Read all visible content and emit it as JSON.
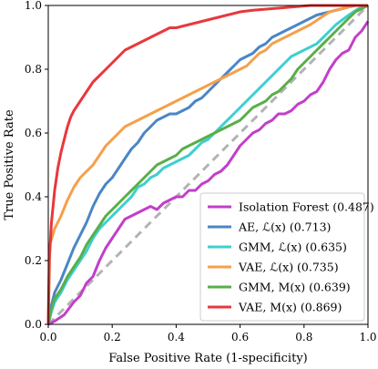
{
  "chart_data": {
    "type": "line",
    "title": "",
    "xlabel": "False Positive Rate (1-specificity)",
    "ylabel": "True Positive Rate",
    "xlim": [
      0,
      1
    ],
    "ylim": [
      0,
      1
    ],
    "xticks": [
      "0.0",
      "0.2",
      "0.4",
      "0.6",
      "0.8",
      "1.0"
    ],
    "yticks": [
      "0.0",
      "0.2",
      "0.4",
      "0.6",
      "0.8",
      "1.0"
    ],
    "grid": false,
    "legend_position": "lower-right",
    "diagonal": {
      "color": "#b3b3b3",
      "style": "dashed"
    },
    "series": [
      {
        "name": "Isolation Forest (0.487)",
        "color": "#c23fc9",
        "points": [
          [
            0,
            0
          ],
          [
            0.02,
            0.01
          ],
          [
            0.05,
            0.03
          ],
          [
            0.08,
            0.07
          ],
          [
            0.1,
            0.09
          ],
          [
            0.12,
            0.13
          ],
          [
            0.14,
            0.15
          ],
          [
            0.16,
            0.2
          ],
          [
            0.18,
            0.24
          ],
          [
            0.2,
            0.27
          ],
          [
            0.22,
            0.3
          ],
          [
            0.24,
            0.33
          ],
          [
            0.26,
            0.34
          ],
          [
            0.28,
            0.35
          ],
          [
            0.3,
            0.36
          ],
          [
            0.32,
            0.37
          ],
          [
            0.34,
            0.36
          ],
          [
            0.36,
            0.38
          ],
          [
            0.38,
            0.39
          ],
          [
            0.4,
            0.4
          ],
          [
            0.42,
            0.4
          ],
          [
            0.44,
            0.42
          ],
          [
            0.46,
            0.42
          ],
          [
            0.48,
            0.44
          ],
          [
            0.5,
            0.45
          ],
          [
            0.52,
            0.47
          ],
          [
            0.54,
            0.48
          ],
          [
            0.56,
            0.5
          ],
          [
            0.58,
            0.53
          ],
          [
            0.6,
            0.56
          ],
          [
            0.62,
            0.58
          ],
          [
            0.64,
            0.6
          ],
          [
            0.66,
            0.61
          ],
          [
            0.68,
            0.63
          ],
          [
            0.7,
            0.64
          ],
          [
            0.72,
            0.66
          ],
          [
            0.74,
            0.66
          ],
          [
            0.76,
            0.67
          ],
          [
            0.78,
            0.69
          ],
          [
            0.8,
            0.7
          ],
          [
            0.82,
            0.72
          ],
          [
            0.84,
            0.73
          ],
          [
            0.86,
            0.76
          ],
          [
            0.88,
            0.8
          ],
          [
            0.9,
            0.83
          ],
          [
            0.92,
            0.85
          ],
          [
            0.94,
            0.86
          ],
          [
            0.96,
            0.9
          ],
          [
            0.98,
            0.92
          ],
          [
            1.0,
            0.95
          ]
        ]
      },
      {
        "name": "AE, ℒ(x) (0.713)",
        "color": "#4a86c6",
        "points": [
          [
            0,
            0
          ],
          [
            0.01,
            0.06
          ],
          [
            0.02,
            0.1
          ],
          [
            0.04,
            0.14
          ],
          [
            0.06,
            0.19
          ],
          [
            0.08,
            0.24
          ],
          [
            0.1,
            0.28
          ],
          [
            0.12,
            0.32
          ],
          [
            0.14,
            0.37
          ],
          [
            0.16,
            0.41
          ],
          [
            0.18,
            0.44
          ],
          [
            0.2,
            0.46
          ],
          [
            0.22,
            0.49
          ],
          [
            0.24,
            0.52
          ],
          [
            0.26,
            0.55
          ],
          [
            0.28,
            0.57
          ],
          [
            0.3,
            0.6
          ],
          [
            0.32,
            0.62
          ],
          [
            0.34,
            0.64
          ],
          [
            0.36,
            0.65
          ],
          [
            0.38,
            0.66
          ],
          [
            0.4,
            0.66
          ],
          [
            0.42,
            0.67
          ],
          [
            0.44,
            0.68
          ],
          [
            0.46,
            0.7
          ],
          [
            0.48,
            0.71
          ],
          [
            0.5,
            0.73
          ],
          [
            0.52,
            0.75
          ],
          [
            0.54,
            0.77
          ],
          [
            0.56,
            0.79
          ],
          [
            0.58,
            0.81
          ],
          [
            0.6,
            0.83
          ],
          [
            0.62,
            0.84
          ],
          [
            0.64,
            0.85
          ],
          [
            0.66,
            0.87
          ],
          [
            0.68,
            0.88
          ],
          [
            0.7,
            0.9
          ],
          [
            0.72,
            0.91
          ],
          [
            0.74,
            0.92
          ],
          [
            0.76,
            0.93
          ],
          [
            0.78,
            0.94
          ],
          [
            0.8,
            0.95
          ],
          [
            0.84,
            0.97
          ],
          [
            0.88,
            0.98
          ],
          [
            0.92,
            0.99
          ],
          [
            0.96,
            1.0
          ],
          [
            1.0,
            1.0
          ]
        ]
      },
      {
        "name": "GMM, ℒ(x) (0.635)",
        "color": "#3fcfcf",
        "points": [
          [
            0,
            0
          ],
          [
            0.01,
            0.04
          ],
          [
            0.02,
            0.07
          ],
          [
            0.04,
            0.1
          ],
          [
            0.06,
            0.14
          ],
          [
            0.08,
            0.17
          ],
          [
            0.1,
            0.2
          ],
          [
            0.12,
            0.23
          ],
          [
            0.14,
            0.27
          ],
          [
            0.16,
            0.3
          ],
          [
            0.18,
            0.32
          ],
          [
            0.2,
            0.34
          ],
          [
            0.22,
            0.36
          ],
          [
            0.24,
            0.38
          ],
          [
            0.26,
            0.4
          ],
          [
            0.28,
            0.43
          ],
          [
            0.3,
            0.44
          ],
          [
            0.32,
            0.46
          ],
          [
            0.34,
            0.47
          ],
          [
            0.36,
            0.49
          ],
          [
            0.38,
            0.5
          ],
          [
            0.4,
            0.51
          ],
          [
            0.42,
            0.52
          ],
          [
            0.44,
            0.53
          ],
          [
            0.46,
            0.55
          ],
          [
            0.48,
            0.57
          ],
          [
            0.5,
            0.58
          ],
          [
            0.52,
            0.6
          ],
          [
            0.54,
            0.62
          ],
          [
            0.56,
            0.64
          ],
          [
            0.58,
            0.66
          ],
          [
            0.6,
            0.68
          ],
          [
            0.62,
            0.7
          ],
          [
            0.64,
            0.72
          ],
          [
            0.66,
            0.74
          ],
          [
            0.68,
            0.76
          ],
          [
            0.7,
            0.78
          ],
          [
            0.72,
            0.8
          ],
          [
            0.74,
            0.82
          ],
          [
            0.76,
            0.84
          ],
          [
            0.78,
            0.85
          ],
          [
            0.8,
            0.86
          ],
          [
            0.82,
            0.87
          ],
          [
            0.84,
            0.88
          ],
          [
            0.86,
            0.9
          ],
          [
            0.88,
            0.92
          ],
          [
            0.9,
            0.94
          ],
          [
            0.94,
            0.97
          ],
          [
            0.97,
            0.99
          ],
          [
            1.0,
            1.0
          ]
        ]
      },
      {
        "name": "VAE, ℒ(x) (0.735)",
        "color": "#f5a04a",
        "points": [
          [
            0,
            0
          ],
          [
            0.005,
            0.25
          ],
          [
            0.02,
            0.3
          ],
          [
            0.04,
            0.34
          ],
          [
            0.06,
            0.39
          ],
          [
            0.08,
            0.43
          ],
          [
            0.1,
            0.46
          ],
          [
            0.12,
            0.48
          ],
          [
            0.14,
            0.5
          ],
          [
            0.16,
            0.53
          ],
          [
            0.18,
            0.56
          ],
          [
            0.2,
            0.58
          ],
          [
            0.22,
            0.6
          ],
          [
            0.24,
            0.62
          ],
          [
            0.26,
            0.63
          ],
          [
            0.28,
            0.64
          ],
          [
            0.3,
            0.65
          ],
          [
            0.32,
            0.66
          ],
          [
            0.34,
            0.67
          ],
          [
            0.36,
            0.68
          ],
          [
            0.38,
            0.69
          ],
          [
            0.4,
            0.7
          ],
          [
            0.42,
            0.71
          ],
          [
            0.44,
            0.72
          ],
          [
            0.46,
            0.73
          ],
          [
            0.48,
            0.74
          ],
          [
            0.5,
            0.75
          ],
          [
            0.52,
            0.76
          ],
          [
            0.54,
            0.77
          ],
          [
            0.56,
            0.78
          ],
          [
            0.58,
            0.79
          ],
          [
            0.6,
            0.8
          ],
          [
            0.62,
            0.81
          ],
          [
            0.64,
            0.83
          ],
          [
            0.66,
            0.85
          ],
          [
            0.68,
            0.86
          ],
          [
            0.7,
            0.88
          ],
          [
            0.72,
            0.89
          ],
          [
            0.74,
            0.9
          ],
          [
            0.76,
            0.91
          ],
          [
            0.78,
            0.92
          ],
          [
            0.8,
            0.93
          ],
          [
            0.82,
            0.94
          ],
          [
            0.85,
            0.96
          ],
          [
            0.88,
            0.98
          ],
          [
            0.92,
            0.99
          ],
          [
            0.96,
            1.0
          ],
          [
            1.0,
            1.0
          ]
        ]
      },
      {
        "name": "GMM, M(x) (0.639)",
        "color": "#5aae4a",
        "points": [
          [
            0,
            0
          ],
          [
            0.01,
            0.05
          ],
          [
            0.02,
            0.08
          ],
          [
            0.04,
            0.11
          ],
          [
            0.06,
            0.15
          ],
          [
            0.08,
            0.18
          ],
          [
            0.1,
            0.21
          ],
          [
            0.12,
            0.25
          ],
          [
            0.14,
            0.28
          ],
          [
            0.16,
            0.31
          ],
          [
            0.18,
            0.34
          ],
          [
            0.2,
            0.36
          ],
          [
            0.22,
            0.38
          ],
          [
            0.24,
            0.4
          ],
          [
            0.26,
            0.42
          ],
          [
            0.28,
            0.44
          ],
          [
            0.3,
            0.46
          ],
          [
            0.32,
            0.48
          ],
          [
            0.34,
            0.5
          ],
          [
            0.36,
            0.51
          ],
          [
            0.38,
            0.52
          ],
          [
            0.4,
            0.53
          ],
          [
            0.42,
            0.55
          ],
          [
            0.44,
            0.56
          ],
          [
            0.46,
            0.57
          ],
          [
            0.48,
            0.58
          ],
          [
            0.5,
            0.59
          ],
          [
            0.52,
            0.6
          ],
          [
            0.54,
            0.61
          ],
          [
            0.56,
            0.62
          ],
          [
            0.58,
            0.63
          ],
          [
            0.6,
            0.64
          ],
          [
            0.62,
            0.66
          ],
          [
            0.64,
            0.68
          ],
          [
            0.66,
            0.69
          ],
          [
            0.68,
            0.7
          ],
          [
            0.7,
            0.72
          ],
          [
            0.72,
            0.73
          ],
          [
            0.74,
            0.75
          ],
          [
            0.76,
            0.77
          ],
          [
            0.78,
            0.8
          ],
          [
            0.8,
            0.82
          ],
          [
            0.82,
            0.84
          ],
          [
            0.84,
            0.86
          ],
          [
            0.86,
            0.88
          ],
          [
            0.88,
            0.9
          ],
          [
            0.9,
            0.92
          ],
          [
            0.93,
            0.95
          ],
          [
            0.96,
            0.98
          ],
          [
            1.0,
            1.0
          ]
        ]
      },
      {
        "name": "VAE, M(x) (0.869)",
        "color": "#e8383d",
        "points": [
          [
            0,
            0
          ],
          [
            0.003,
            0.2
          ],
          [
            0.01,
            0.32
          ],
          [
            0.02,
            0.42
          ],
          [
            0.03,
            0.49
          ],
          [
            0.04,
            0.54
          ],
          [
            0.05,
            0.58
          ],
          [
            0.06,
            0.62
          ],
          [
            0.07,
            0.65
          ],
          [
            0.08,
            0.67
          ],
          [
            0.1,
            0.7
          ],
          [
            0.12,
            0.73
          ],
          [
            0.14,
            0.76
          ],
          [
            0.16,
            0.78
          ],
          [
            0.18,
            0.8
          ],
          [
            0.2,
            0.82
          ],
          [
            0.22,
            0.84
          ],
          [
            0.24,
            0.86
          ],
          [
            0.26,
            0.87
          ],
          [
            0.28,
            0.88
          ],
          [
            0.3,
            0.89
          ],
          [
            0.32,
            0.9
          ],
          [
            0.34,
            0.91
          ],
          [
            0.36,
            0.92
          ],
          [
            0.38,
            0.93
          ],
          [
            0.4,
            0.93
          ],
          [
            0.44,
            0.94
          ],
          [
            0.48,
            0.95
          ],
          [
            0.52,
            0.96
          ],
          [
            0.56,
            0.97
          ],
          [
            0.6,
            0.98
          ],
          [
            0.64,
            0.985
          ],
          [
            0.7,
            0.99
          ],
          [
            0.76,
            0.995
          ],
          [
            0.82,
            1.0
          ],
          [
            1.0,
            1.0
          ]
        ]
      }
    ]
  }
}
